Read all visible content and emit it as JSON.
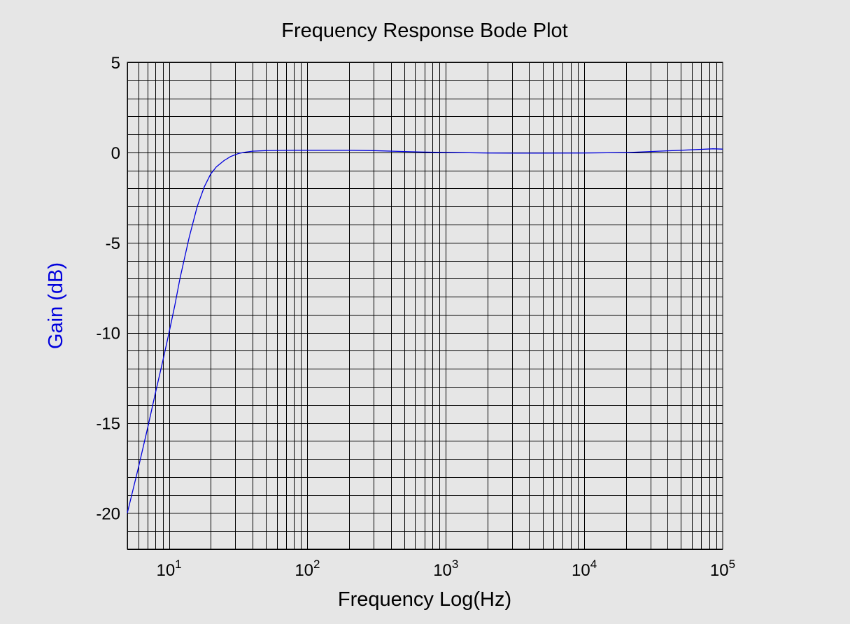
{
  "chart_data": {
    "type": "line",
    "title": "Frequency Response Bode Plot",
    "xlabel": "Frequency Log(Hz)",
    "ylabel": "Gain (dB)",
    "x_scale": "log",
    "xlim": [
      5,
      100000
    ],
    "ylim": [
      -22,
      5
    ],
    "y_ticks": [
      5,
      0,
      -5,
      -10,
      -15,
      -20
    ],
    "x_ticks": [
      {
        "value": 10,
        "base": "10",
        "exp": "1"
      },
      {
        "value": 100,
        "base": "10",
        "exp": "2"
      },
      {
        "value": 1000,
        "base": "10",
        "exp": "3"
      },
      {
        "value": 10000,
        "base": "10",
        "exp": "4"
      },
      {
        "value": 100000,
        "base": "10",
        "exp": "5"
      }
    ],
    "grid": true,
    "colors": {
      "line": "#0000dd",
      "ylabel": "#0000dd",
      "grid": "#000000",
      "background": "#e6e6e6"
    },
    "series": [
      {
        "x": [
          5,
          6,
          7,
          8,
          9,
          10,
          11,
          12,
          14,
          16,
          18,
          20,
          22,
          25,
          28,
          32,
          36,
          40,
          50,
          60,
          80,
          100,
          150,
          200,
          300,
          500,
          700,
          1000,
          2000,
          3000,
          5000,
          10000,
          20000,
          30000,
          50000,
          70000,
          85000,
          100000
        ],
        "y": [
          -20,
          -17.5,
          -15.3,
          -13.3,
          -11.6,
          -10.0,
          -8.5,
          -7.0,
          -4.7,
          -3.0,
          -1.9,
          -1.2,
          -0.8,
          -0.45,
          -0.22,
          -0.05,
          0.02,
          0.07,
          0.1,
          0.11,
          0.12,
          0.12,
          0.12,
          0.12,
          0.1,
          0.05,
          0.02,
          0.0,
          -0.03,
          -0.04,
          -0.04,
          -0.03,
          -0.01,
          0.05,
          0.12,
          0.17,
          0.2,
          0.18
        ]
      }
    ]
  }
}
